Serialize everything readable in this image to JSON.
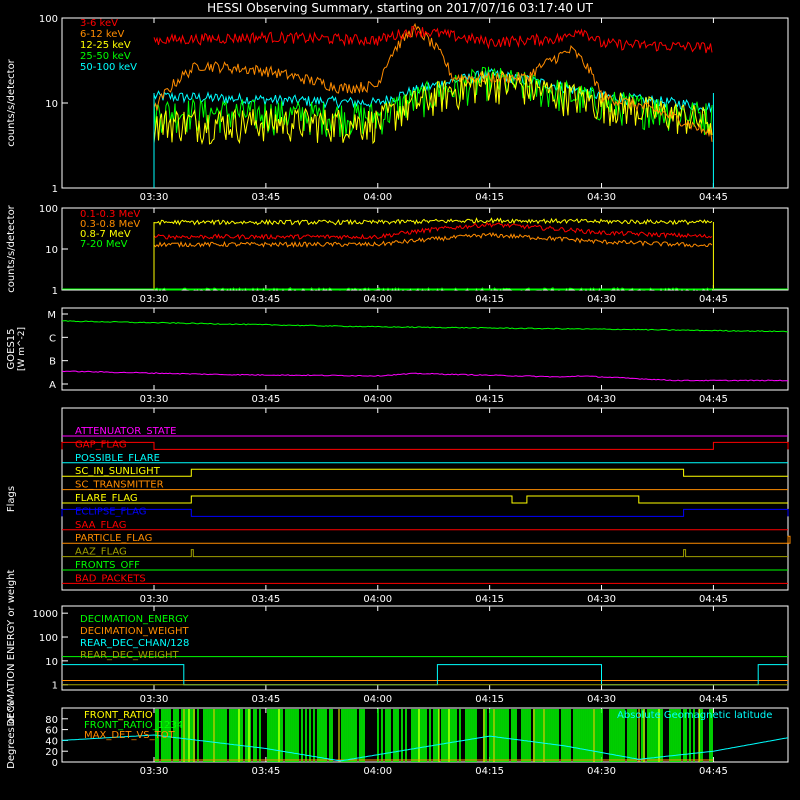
{
  "title": "HESSI Observing Summary, starting on 2017/07/16 03:17:40 UT",
  "time_axis": {
    "start": "03:17:40",
    "end": "04:55",
    "ticks": [
      "03:30",
      "03:45",
      "04:00",
      "04:15",
      "04:30",
      "04:45"
    ]
  },
  "colors": {
    "background": "#000000",
    "axis": "#ffffff",
    "red": "#ff0000",
    "orange": "#ff8c00",
    "yellow": "#ffff00",
    "green": "#00ff00",
    "cyan": "#00ffff",
    "magenta": "#ff00ff",
    "blue": "#0000ff",
    "olive": "#a0a000"
  },
  "chart_data": [
    {
      "type": "line",
      "panel": "counts_low",
      "ylabel": "counts/s/detector",
      "yscale": "log",
      "ylim": [
        1,
        100
      ],
      "y_ticks": [
        "100",
        "10",
        "1"
      ],
      "data_window": [
        "03:30",
        "04:45"
      ],
      "legend_placement": "top-left",
      "series": [
        {
          "name": "3-6 keV",
          "color": "#ff0000",
          "level": 55,
          "points": [
            [
              "03:30",
              55
            ],
            [
              "03:45",
              60
            ],
            [
              "04:00",
              55
            ],
            [
              "04:05",
              72
            ],
            [
              "04:15",
              52
            ],
            [
              "04:25",
              58
            ],
            [
              "04:27",
              75
            ],
            [
              "04:30",
              50
            ],
            [
              "04:45",
              45
            ]
          ]
        },
        {
          "name": "6-12 keV",
          "color": "#ff8c00",
          "level": 25,
          "points": [
            [
              "03:30",
              8
            ],
            [
              "03:36",
              28
            ],
            [
              "03:45",
              24
            ],
            [
              "03:55",
              15
            ],
            [
              "04:00",
              16
            ],
            [
              "04:05",
              75
            ],
            [
              "04:10",
              20
            ],
            [
              "04:20",
              20
            ],
            [
              "04:26",
              42
            ],
            [
              "04:30",
              12
            ],
            [
              "04:45",
              4
            ]
          ]
        },
        {
          "name": "12-25 keV",
          "color": "#ffff00",
          "level": 6,
          "points": [
            [
              "03:30",
              6
            ],
            [
              "04:00",
              6
            ],
            [
              "04:15",
              18
            ],
            [
              "04:30",
              10
            ],
            [
              "04:45",
              6
            ]
          ]
        },
        {
          "name": "25-50 keV",
          "color": "#00ff00",
          "level": 7,
          "points": [
            [
              "03:30",
              8
            ],
            [
              "04:00",
              7
            ],
            [
              "04:15",
              19
            ],
            [
              "04:30",
              10
            ],
            [
              "04:45",
              7
            ]
          ]
        },
        {
          "name": "50-100 keV",
          "color": "#00ffff",
          "level": 10,
          "points": [
            [
              "03:30",
              12
            ],
            [
              "04:00",
              10
            ],
            [
              "04:15",
              22
            ],
            [
              "04:30",
              12
            ],
            [
              "04:45",
              9
            ]
          ]
        }
      ]
    },
    {
      "type": "line",
      "panel": "counts_high",
      "ylabel": "counts/s/detector",
      "yscale": "log",
      "ylim": [
        1,
        100
      ],
      "y_ticks": [
        "100",
        "10",
        "1"
      ],
      "data_window": [
        "03:30",
        "04:45"
      ],
      "legend_placement": "top-left",
      "series": [
        {
          "name": "0.1-0.3 MeV",
          "color": "#ff0000",
          "points": [
            [
              "03:30",
              20
            ],
            [
              "04:00",
              20
            ],
            [
              "04:15",
              40
            ],
            [
              "04:30",
              25
            ],
            [
              "04:45",
              20
            ]
          ]
        },
        {
          "name": "0.3-0.8 MeV",
          "color": "#ff8c00",
          "points": [
            [
              "03:30",
              13
            ],
            [
              "04:00",
              13
            ],
            [
              "04:15",
              22
            ],
            [
              "04:30",
              15
            ],
            [
              "04:45",
              12
            ]
          ]
        },
        {
          "name": "0.8-7 MeV",
          "color": "#ffff00",
          "points": [
            [
              "03:30",
              45
            ],
            [
              "04:00",
              45
            ],
            [
              "04:15",
              50
            ],
            [
              "04:30",
              47
            ],
            [
              "04:45",
              45
            ]
          ]
        },
        {
          "name": "7-20 MeV",
          "color": "#00ff00",
          "points": [
            [
              "03:30",
              1
            ],
            [
              "04:45",
              1
            ]
          ]
        }
      ]
    },
    {
      "type": "line",
      "panel": "goes",
      "ylabel": "GOES15",
      "yunits": "W m^-2",
      "y_ticks": [
        "M",
        "C",
        "B",
        "A"
      ],
      "series": [
        {
          "color": "#00ff00",
          "points": [
            [
              "03:17:40",
              2.7
            ],
            [
              "04:00",
              2.45
            ],
            [
              "04:30",
              2.35
            ],
            [
              "04:55",
              2.25
            ]
          ]
        },
        {
          "color": "#ff00ff",
          "points": [
            [
              "03:17:40",
              0.55
            ],
            [
              "03:40",
              0.4
            ],
            [
              "04:00",
              0.35
            ],
            [
              "04:05",
              0.45
            ],
            [
              "04:25",
              0.3
            ],
            [
              "04:27",
              0.35
            ],
            [
              "04:40",
              0.15
            ],
            [
              "04:55",
              0.15
            ]
          ]
        }
      ]
    },
    {
      "type": "line",
      "panel": "flags",
      "ylabel": "Flags",
      "series": [
        {
          "name": "ATTENUATOR_STATE",
          "color": "#ff00ff",
          "segments": []
        },
        {
          "name": "GAP_FLAG",
          "color": "#ff0000",
          "segments": [
            [
              "03:17:40",
              "03:30"
            ],
            [
              "04:45",
              "04:55"
            ]
          ]
        },
        {
          "name": "POSSIBLE_FLARE",
          "color": "#00ffff",
          "segments": []
        },
        {
          "name": "SC_IN_SUNLIGHT",
          "color": "#ffff00",
          "segments": [
            [
              "03:35",
              "04:41"
            ]
          ]
        },
        {
          "name": "SC_TRANSMITTER",
          "color": "#ff8c00",
          "segments": []
        },
        {
          "name": "FLARE_FLAG",
          "color": "#ffff00",
          "segments": [
            [
              "03:35",
              "04:18"
            ],
            [
              "04:20",
              "04:35"
            ]
          ]
        },
        {
          "name": "ECLIPSE_FLAG",
          "color": "#0000ff",
          "segments": [
            [
              "03:17:40",
              "03:35"
            ],
            [
              "04:41",
              "04:55"
            ]
          ]
        },
        {
          "name": "SAA_FLAG",
          "color": "#ff0000",
          "segments": []
        },
        {
          "name": "PARTICLE_FLAG",
          "color": "#ff8c00",
          "segments": [
            [
              "04:55",
              "04:55"
            ]
          ]
        },
        {
          "name": "AAZ_FLAG",
          "color": "#a0a000",
          "segments": [
            [
              "03:35",
              "03:35"
            ],
            [
              "04:41",
              "04:41"
            ]
          ]
        },
        {
          "name": "FRONTS_OFF",
          "color": "#00ff00",
          "segments": []
        },
        {
          "name": "BAD_PACKETS",
          "color": "#ff0000",
          "segments": []
        }
      ]
    },
    {
      "type": "line",
      "panel": "decimation",
      "ylabel": "DECIMATION ENERGY or weight",
      "yscale": "log",
      "y_ticks": [
        "1000",
        "100",
        "10",
        "1"
      ],
      "legend_placement": "top-left",
      "series": [
        {
          "name": "DECIMATION_ENERGY",
          "color": "#00ff00",
          "level": 15
        },
        {
          "name": "DECIMATION_WEIGHT",
          "color": "#ff8c00",
          "level": 1.5
        },
        {
          "name": "REAR_DEC_CHAN/128",
          "color": "#00ffff",
          "steps": [
            [
              "03:17:40",
              "03:34",
              7
            ],
            [
              "03:34",
              "04:08",
              1
            ],
            [
              "04:08",
              "04:30",
              7
            ],
            [
              "04:30",
              "04:51",
              1
            ],
            [
              "04:51",
              "04:55",
              7
            ]
          ]
        },
        {
          "name": "REAR_DEC_WEIGHT",
          "color": "#a0a000",
          "level": 1
        }
      ]
    },
    {
      "type": "line",
      "panel": "ratios",
      "ylabel": "Degrees or %",
      "ylim": [
        0,
        100
      ],
      "y_ticks": [
        "80",
        "60",
        "40",
        "20",
        "0"
      ],
      "legend_placement": "top-left",
      "series": [
        {
          "name": "FRONT_RATIO",
          "color": "#ffff00",
          "range": [
            "03:30",
            "04:45"
          ]
        },
        {
          "name": "FRONT_RATIO_1234",
          "color": "#00ff00",
          "range": [
            "03:30",
            "04:45"
          ]
        },
        {
          "name": "MAX_DET_VS_TOT",
          "color": "#ff8c00",
          "range": [
            "03:30",
            "04:45"
          ]
        },
        {
          "name": "Absolute Geomagnetic latitude",
          "color": "#00ffff",
          "points": [
            [
              "03:17:40",
              40
            ],
            [
              "03:30",
              50
            ],
            [
              "03:45",
              25
            ],
            [
              "03:55",
              2
            ],
            [
              "04:05",
              25
            ],
            [
              "04:15",
              48
            ],
            [
              "04:25",
              30
            ],
            [
              "04:35",
              5
            ],
            [
              "04:45",
              20
            ],
            [
              "04:55",
              45
            ]
          ]
        }
      ]
    }
  ]
}
